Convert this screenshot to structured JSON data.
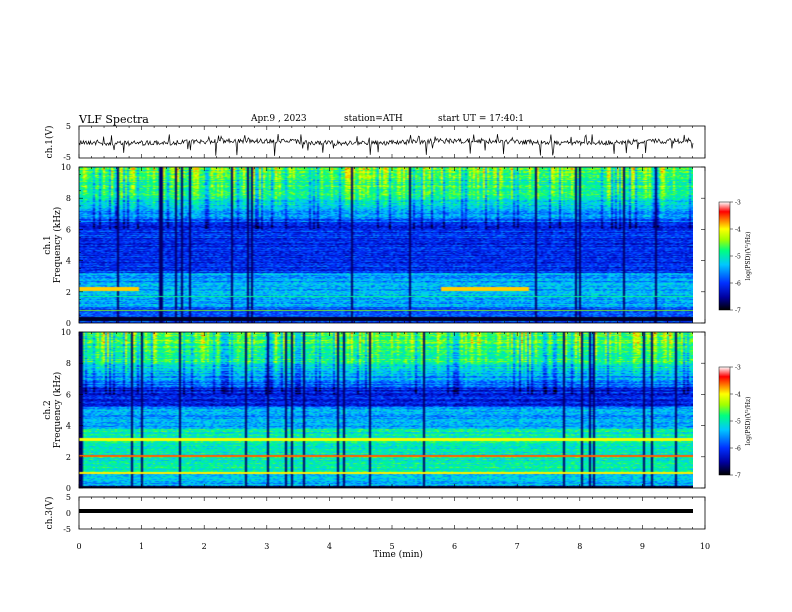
{
  "header": {
    "title": "VLF Spectra",
    "date": "Apr.9 , 2023",
    "station": "station=ATH",
    "start_ut": "start UT = 17:40:1"
  },
  "chart_data": [
    {
      "type": "line",
      "ylabel": "ch.1(V)",
      "ylim": [
        -5,
        5
      ],
      "yticks": [
        "5",
        "-5"
      ],
      "xlim": [
        0,
        10
      ],
      "note": "broadband waveform centered near 0 V with frequent downward spikes"
    },
    {
      "type": "heatmap",
      "ylabel": "ch.1",
      "ylabel2": "Frequency (kHz)",
      "ylim": [
        0,
        10
      ],
      "yticks": [
        "0",
        "2",
        "4",
        "6",
        "8",
        "10"
      ],
      "xlim": [
        0,
        9.8
      ],
      "colorbar": {
        "label": "log(PSD)(V²/Hz)",
        "range": [
          -7,
          -3
        ],
        "ticks": [
          "-3",
          "-4",
          "-5",
          "-6",
          "-7"
        ]
      }
    },
    {
      "type": "heatmap",
      "ylabel": "ch.2",
      "ylabel2": "Frequency (kHz)",
      "ylim": [
        0,
        10
      ],
      "yticks": [
        "0",
        "2",
        "4",
        "6",
        "8",
        "10"
      ],
      "xlim": [
        0,
        9.8
      ],
      "colorbar": {
        "label": "log(PSD)(V²/Hz)",
        "range": [
          -7,
          -3
        ],
        "ticks": [
          "-3",
          "-4",
          "-5",
          "-6",
          "-7"
        ]
      }
    },
    {
      "type": "line",
      "ylabel": "ch.3(V)",
      "ylim": [
        -5,
        5
      ],
      "yticks": [
        "5",
        "0",
        "-5"
      ],
      "xlim": [
        0,
        10
      ],
      "note": "flat thick trace at about -1 V"
    }
  ],
  "x_axis": {
    "label": "Time (min)",
    "ticks": [
      "0",
      "1",
      "2",
      "3",
      "4",
      "5",
      "6",
      "7",
      "8",
      "9",
      "10"
    ]
  },
  "colors": {
    "colormap": [
      "#000000",
      "#0000a0",
      "#0030ff",
      "#00c8ff",
      "#00ff80",
      "#a0ff00",
      "#ffff00",
      "#ff8000",
      "#ff0000",
      "#ffffff"
    ]
  }
}
